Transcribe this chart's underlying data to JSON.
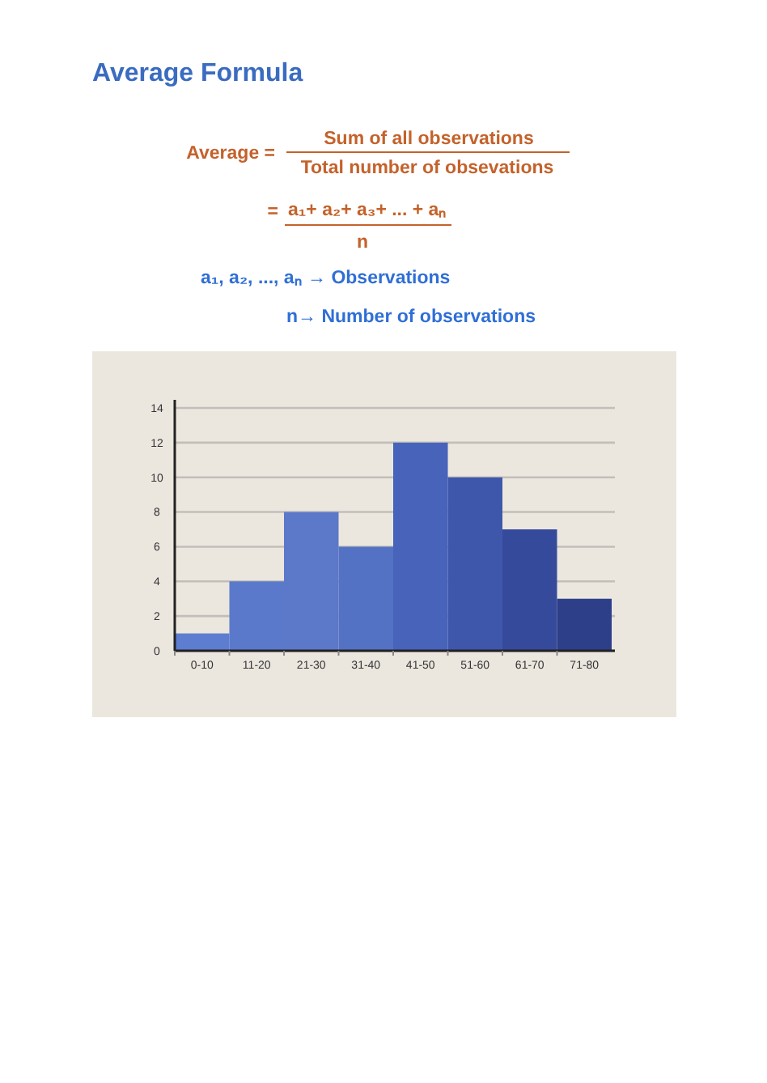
{
  "chart_data": {
    "type": "bar",
    "title": "Average Formula",
    "annotations": [
      "Average =",
      "Sum of all observations",
      "Total number of obsevations",
      "=",
      "a₁+ a₂+ a₃+ ... + aₙ",
      "n",
      "a₁, a₂, ..., aₙ → Observations",
      "n→ Number of observations"
    ],
    "categories": [
      "0-10",
      "11-20",
      "21-30",
      "31-40",
      "41-50",
      "51-60",
      "61-70",
      "71-80"
    ],
    "values": [
      1,
      4,
      8,
      6,
      12,
      10,
      7,
      3
    ],
    "colors": [
      "#5d7dd0",
      "#5a79cb",
      "#5c78c8",
      "#5472c3",
      "#4763ba",
      "#3f57ab",
      "#364a9c",
      "#2d3f89"
    ],
    "ylim": [
      0,
      14
    ],
    "yticks": [
      0,
      2,
      4,
      6,
      8,
      10,
      12,
      14
    ],
    "grid": "y"
  }
}
